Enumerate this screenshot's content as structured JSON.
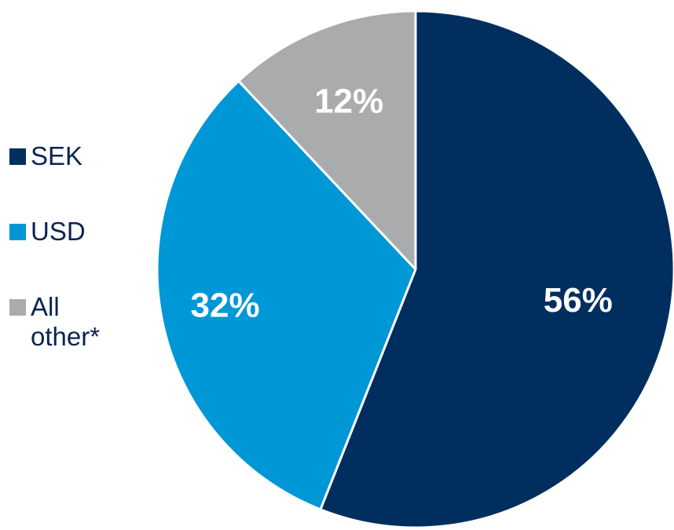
{
  "chart_data": {
    "type": "pie",
    "title": "",
    "categories": [
      "SEK",
      "USD",
      "All other*"
    ],
    "values": [
      56,
      32,
      12
    ],
    "labels": [
      "56%",
      "32%",
      "12%"
    ],
    "colors": [
      "#002f5f",
      "#0097d6",
      "#a9abad"
    ],
    "label_colors": [
      "#ffffff",
      "#ffffff",
      "#ffffff"
    ],
    "legend": {
      "placement": "left",
      "entries": [
        {
          "label": "SEK",
          "color": "#002f5f"
        },
        {
          "label": "USD",
          "color": "#0097d6"
        },
        {
          "label": "All other*",
          "color": "#a9abad"
        }
      ]
    },
    "start_angle": "12 o'clock",
    "direction": "clockwise"
  }
}
